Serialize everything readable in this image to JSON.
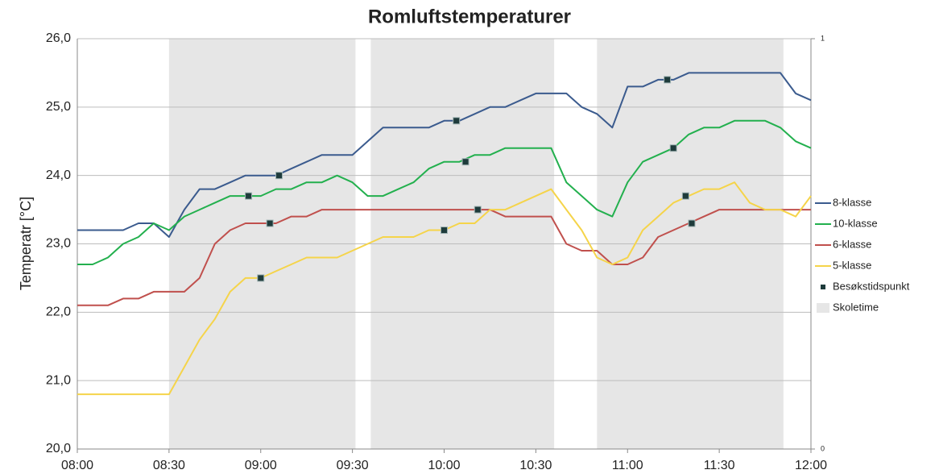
{
  "chart_data": {
    "type": "line",
    "title": "Romluftstemperaturer",
    "y_label": "Temperatr [°C]",
    "xlim": [
      "08:00",
      "12:00"
    ],
    "xticks": [
      "08:00",
      "08:30",
      "09:00",
      "09:30",
      "10:00",
      "10:30",
      "11:00",
      "11:30",
      "12:00"
    ],
    "ylim": [
      20,
      26
    ],
    "yticks": [
      {
        "value": 20,
        "label": "20,0"
      },
      {
        "value": 21,
        "label": "21,0"
      },
      {
        "value": 22,
        "label": "22,0"
      },
      {
        "value": 23,
        "label": "23,0"
      },
      {
        "value": 24,
        "label": "24,0"
      },
      {
        "value": 25,
        "label": "25,0"
      },
      {
        "value": 26,
        "label": "26,0"
      }
    ],
    "y2lim": [
      0,
      1
    ],
    "y2ticks": [
      0,
      1
    ],
    "grid": true,
    "legend": "right",
    "x": [
      "08:00",
      "08:05",
      "08:10",
      "08:15",
      "08:20",
      "08:25",
      "08:30",
      "08:35",
      "08:40",
      "08:45",
      "08:50",
      "08:55",
      "09:00",
      "09:05",
      "09:10",
      "09:15",
      "09:20",
      "09:25",
      "09:30",
      "09:35",
      "09:40",
      "09:45",
      "09:50",
      "09:55",
      "10:00",
      "10:05",
      "10:10",
      "10:15",
      "10:20",
      "10:25",
      "10:30",
      "10:35",
      "10:40",
      "10:45",
      "10:50",
      "10:55",
      "11:00",
      "11:05",
      "11:10",
      "11:15",
      "11:20",
      "11:25",
      "11:30",
      "11:35",
      "11:40",
      "11:45",
      "11:50",
      "11:55",
      "12:00"
    ],
    "series": [
      {
        "name": "8-klasse",
        "color": "#3b5b8e",
        "values": [
          23.2,
          23.2,
          23.2,
          23.2,
          23.3,
          23.3,
          23.1,
          23.5,
          23.8,
          23.8,
          23.9,
          24.0,
          24.0,
          24.0,
          24.1,
          24.2,
          24.3,
          24.3,
          24.3,
          24.5,
          24.7,
          24.7,
          24.7,
          24.7,
          24.8,
          24.8,
          24.9,
          25.0,
          25.0,
          25.1,
          25.2,
          25.2,
          25.2,
          25.0,
          24.9,
          24.7,
          25.3,
          25.3,
          25.4,
          25.4,
          25.5,
          25.5,
          25.5,
          25.5,
          25.5,
          25.5,
          25.5,
          25.2,
          25.1
        ]
      },
      {
        "name": "10-klasse",
        "color": "#23b04e",
        "values": [
          22.7,
          22.7,
          22.8,
          23.0,
          23.1,
          23.3,
          23.2,
          23.4,
          23.5,
          23.6,
          23.7,
          23.7,
          23.7,
          23.8,
          23.8,
          23.9,
          23.9,
          24.0,
          23.9,
          23.7,
          23.7,
          23.8,
          23.9,
          24.1,
          24.2,
          24.2,
          24.3,
          24.3,
          24.4,
          24.4,
          24.4,
          24.4,
          23.9,
          23.7,
          23.5,
          23.4,
          23.9,
          24.2,
          24.3,
          24.4,
          24.6,
          24.7,
          24.7,
          24.8,
          24.8,
          24.8,
          24.7,
          24.5,
          24.4
        ]
      },
      {
        "name": "6-klasse",
        "color": "#c0504d",
        "values": [
          22.1,
          22.1,
          22.1,
          22.2,
          22.2,
          22.3,
          22.3,
          22.3,
          22.5,
          23.0,
          23.2,
          23.3,
          23.3,
          23.3,
          23.4,
          23.4,
          23.5,
          23.5,
          23.5,
          23.5,
          23.5,
          23.5,
          23.5,
          23.5,
          23.5,
          23.5,
          23.5,
          23.5,
          23.4,
          23.4,
          23.4,
          23.4,
          23.0,
          22.9,
          22.9,
          22.7,
          22.7,
          22.8,
          23.1,
          23.2,
          23.3,
          23.4,
          23.5,
          23.5,
          23.5,
          23.5,
          23.5,
          23.5,
          23.5
        ]
      },
      {
        "name": "5-klasse",
        "color": "#f5d44a",
        "values": [
          20.8,
          20.8,
          20.8,
          20.8,
          20.8,
          20.8,
          20.8,
          21.2,
          21.6,
          21.9,
          22.3,
          22.5,
          22.5,
          22.6,
          22.7,
          22.8,
          22.8,
          22.8,
          22.9,
          23.0,
          23.1,
          23.1,
          23.1,
          23.2,
          23.2,
          23.3,
          23.3,
          23.5,
          23.5,
          23.6,
          23.7,
          23.8,
          23.5,
          23.2,
          22.8,
          22.7,
          22.8,
          23.2,
          23.4,
          23.6,
          23.7,
          23.8,
          23.8,
          23.9,
          23.6,
          23.5,
          23.5,
          23.4,
          23.7
        ]
      }
    ],
    "markers": {
      "name": "Besøkstidspunkt",
      "color": "#1e3b3b",
      "x": [
        "08:56",
        "09:06",
        "09:03",
        "09:00",
        "10:04",
        "10:07",
        "10:11",
        "10:00",
        "11:13",
        "11:15",
        "11:19",
        "11:21"
      ],
      "values": [
        23.7,
        24.0,
        23.3,
        22.5,
        24.8,
        24.2,
        23.5,
        23.2,
        25.4,
        24.4,
        23.7,
        23.3
      ]
    },
    "bands": {
      "name": "Skoletime",
      "color": "#e6e6e6",
      "intervals": [
        [
          "08:30",
          "09:31"
        ],
        [
          "09:36",
          "10:36"
        ],
        [
          "10:50",
          "11:51"
        ]
      ]
    }
  }
}
